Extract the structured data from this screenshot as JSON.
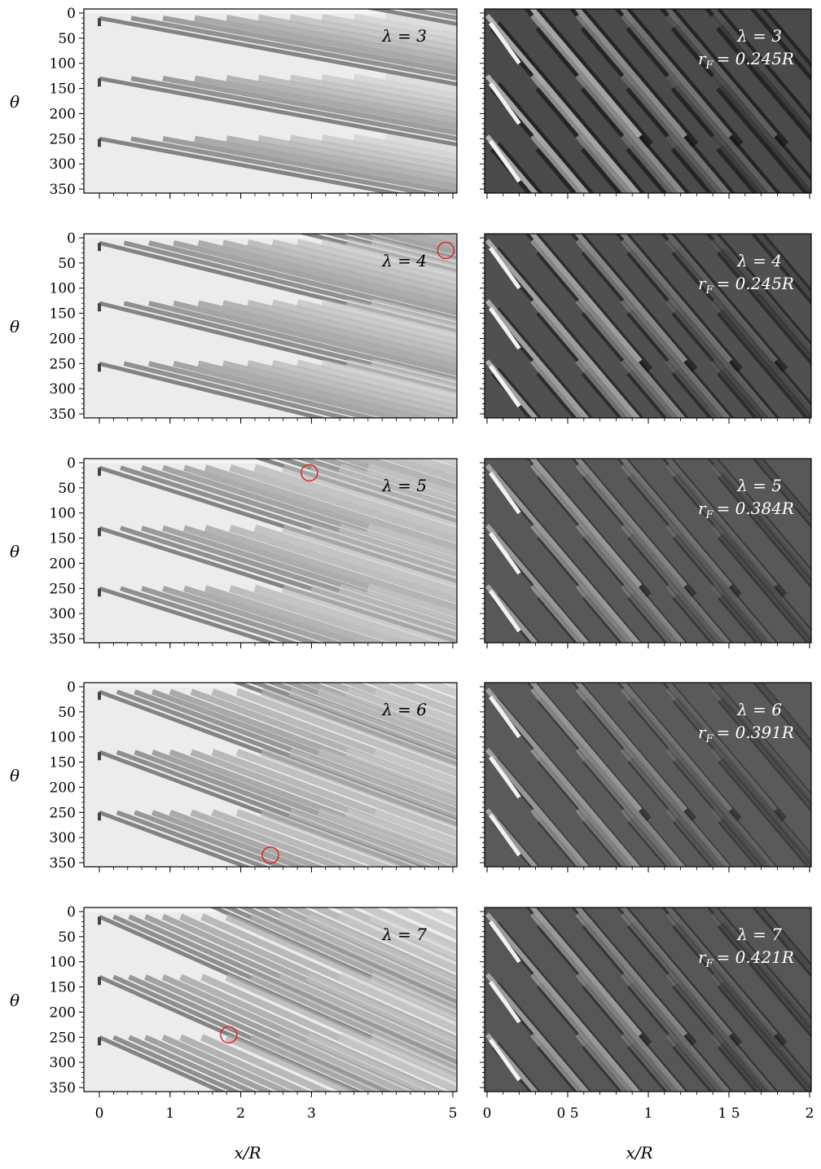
{
  "chart_data": {
    "type": "heatmap",
    "rows": [
      {
        "left": {
          "lambda_label": "λ = 3",
          "x_range": [
            0,
            5
          ],
          "theta_range": [
            0,
            350
          ],
          "wakes": [
            0.0,
            0.45,
            0.9,
            1.35,
            1.8,
            2.25,
            2.7,
            3.15,
            3.6,
            4.05
          ],
          "wake_slope": 0.012,
          "circles": []
        },
        "right": {
          "lambda_label": "λ = 3",
          "rf_label": "r",
          "rf_sub": "F",
          "rf_value": "= 0.245R",
          "x_range": [
            0,
            2
          ],
          "theta_range": [
            0,
            350
          ],
          "contrast": 0.9
        }
      },
      {
        "left": {
          "lambda_label": "λ = 4",
          "x_range": [
            0,
            5
          ],
          "theta_range": [
            0,
            350
          ],
          "wakes": [
            0.0,
            0.35,
            0.7,
            1.05,
            1.4,
            1.75,
            2.1,
            2.45,
            2.8,
            3.15,
            3.5,
            3.85
          ],
          "wake_slope": 0.009,
          "circles": [
            {
              "x": 4.9,
              "theta": 25
            }
          ]
        },
        "right": {
          "lambda_label": "λ = 4",
          "rf_label": "r",
          "rf_sub": "F",
          "rf_value": "= 0.245R",
          "x_range": [
            0,
            2
          ],
          "theta_range": [
            0,
            350
          ],
          "contrast": 0.75
        }
      },
      {
        "left": {
          "lambda_label": "λ = 5",
          "x_range": [
            0,
            5
          ],
          "theta_range": [
            0,
            350
          ],
          "wakes": [
            0.0,
            0.3,
            0.6,
            0.9,
            1.2,
            1.5,
            1.85,
            2.2,
            2.6,
            3.0,
            3.4,
            3.8
          ],
          "wake_slope": 0.007,
          "circles": [
            {
              "x": 2.97,
              "theta": 20
            }
          ]
        },
        "right": {
          "lambda_label": "λ = 5",
          "rf_label": "r",
          "rf_sub": "F",
          "rf_value": "= 0.384R",
          "x_range": [
            0,
            2
          ],
          "theta_range": [
            0,
            350
          ],
          "contrast": 0.55
        }
      },
      {
        "left": {
          "lambda_label": "λ = 6",
          "x_range": [
            0,
            5
          ],
          "theta_range": [
            0,
            350
          ],
          "wakes": [
            0.0,
            0.25,
            0.5,
            0.75,
            1.0,
            1.3,
            1.6,
            1.95,
            2.3,
            2.7,
            3.1,
            3.5,
            3.9
          ],
          "wake_slope": 0.006,
          "circles": [
            {
              "x": 2.42,
              "theta": 335
            }
          ]
        },
        "right": {
          "lambda_label": "λ = 6",
          "rf_label": "r",
          "rf_sub": "F",
          "rf_value": "= 0.391R",
          "x_range": [
            0,
            2
          ],
          "theta_range": [
            0,
            350
          ],
          "contrast": 0.5
        }
      },
      {
        "left": {
          "lambda_label": "λ = 7",
          "x_range": [
            0,
            5
          ],
          "theta_range": [
            0,
            350
          ],
          "wakes": [
            0.0,
            0.2,
            0.42,
            0.65,
            0.9,
            1.15,
            1.45,
            1.8,
            2.15,
            2.55,
            2.95,
            3.4,
            3.85
          ],
          "wake_slope": 0.005,
          "circles": [
            {
              "x": 1.83,
              "theta": 245
            }
          ]
        },
        "right": {
          "lambda_label": "λ = 7",
          "rf_label": "r",
          "rf_sub": "F",
          "rf_value": "= 0.421R",
          "x_range": [
            0,
            2
          ],
          "theta_range": [
            0,
            350
          ],
          "contrast": 0.6
        }
      }
    ],
    "y_ticks": [
      "0",
      "50",
      "100",
      "150",
      "200",
      "250",
      "300",
      "350"
    ],
    "y_tick_values": [
      0,
      50,
      100,
      150,
      200,
      250,
      300,
      350
    ],
    "ylabel": "θ",
    "left_x_ticks": [
      "0",
      "1",
      "2",
      "3",
      "5"
    ],
    "left_x_tick_values": [
      0,
      1,
      2,
      3,
      5
    ],
    "right_x_ticks": [
      "0",
      "0 5",
      "1",
      "1 5",
      "2"
    ],
    "right_x_tick_values": [
      0,
      0.5,
      1,
      1.5,
      2
    ],
    "xlabel_left": "x/R",
    "xlabel_right": "x/R",
    "circle_color": "#e02020"
  }
}
